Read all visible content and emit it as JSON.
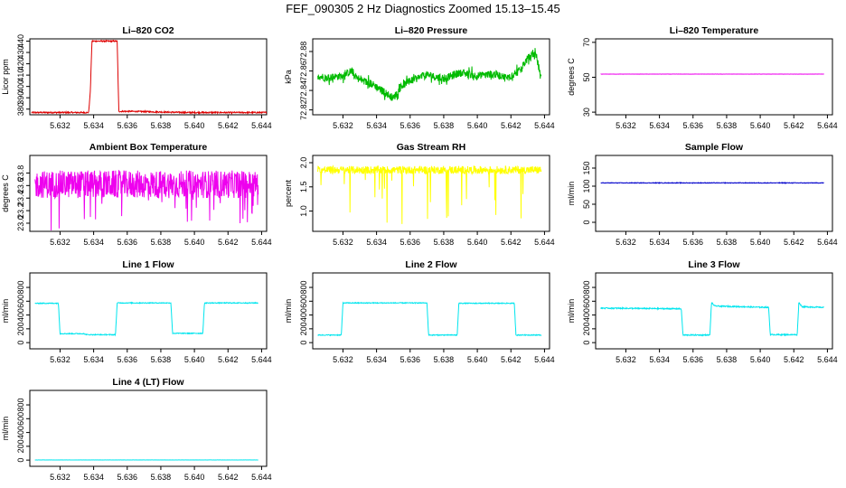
{
  "figure": {
    "title": "FEF_090305  2 Hz Diagnostics Zoomed 15.13–15.45"
  },
  "chart_data": [
    {
      "id": "co2",
      "type": "line",
      "title": "Li–820 CO2",
      "xlabel": "",
      "ylabel": "Licor ppm",
      "color": "#dd0000",
      "xlim": [
        5.6302,
        5.6443
      ],
      "ylim": [
        375,
        442
      ],
      "xticks": [
        "5.632",
        "5.634",
        "5.636",
        "5.638",
        "5.640",
        "5.642",
        "5.644"
      ],
      "yticks": [
        "380",
        "390",
        "400",
        "410",
        "420",
        "430",
        "440"
      ],
      "noise": 0.6,
      "x": [
        5.6303,
        5.6337,
        5.6338,
        5.6339,
        5.6354,
        5.6355,
        5.6362,
        5.6395,
        5.6443
      ],
      "y": [
        377,
        377,
        395,
        440,
        440,
        378,
        378,
        377,
        377
      ]
    },
    {
      "id": "pressure",
      "type": "line",
      "title": "Li–820 Pressure",
      "xlabel": "",
      "ylabel": "kPa",
      "color": "#00bb00",
      "xlim": [
        5.6302,
        5.6443
      ],
      "ylim": [
        72.815,
        72.893
      ],
      "xticks": [
        "5.632",
        "5.634",
        "5.636",
        "5.638",
        "5.640",
        "5.642",
        "5.644"
      ],
      "yticks": [
        "72.82",
        "72.84",
        "72.86",
        "72.88"
      ],
      "noise": 0.004,
      "x": [
        5.6305,
        5.631,
        5.632,
        5.6325,
        5.633,
        5.6338,
        5.6345,
        5.635,
        5.6355,
        5.6362,
        5.637,
        5.638,
        5.639,
        5.64,
        5.641,
        5.6418,
        5.6425,
        5.643,
        5.6435,
        5.6438
      ],
      "y": [
        72.855,
        72.853,
        72.855,
        72.86,
        72.851,
        72.846,
        72.838,
        72.832,
        72.845,
        72.851,
        72.856,
        72.852,
        72.858,
        72.855,
        72.857,
        72.853,
        72.86,
        72.873,
        72.877,
        72.851
      ]
    },
    {
      "id": "temperature",
      "type": "line",
      "title": "Li–820 Temperature",
      "xlabel": "",
      "ylabel": "degrees C",
      "color": "#ee00ee",
      "xlim": [
        5.6302,
        5.6443
      ],
      "ylim": [
        28.5,
        72
      ],
      "xticks": [
        "5.632",
        "5.634",
        "5.636",
        "5.638",
        "5.640",
        "5.642",
        "5.644"
      ],
      "yticks": [
        "30",
        "50",
        "70"
      ],
      "noise": 0.05,
      "x": [
        5.6305,
        5.6438
      ],
      "y": [
        51.8,
        51.8
      ]
    },
    {
      "id": "box-temp",
      "type": "line",
      "title": "Ambient Box Temperature",
      "xlabel": "",
      "ylabel": "degrees C",
      "color": "#ee00ee",
      "xlim": [
        5.6302,
        5.6443
      ],
      "ylim": [
        22.87,
        24.08
      ],
      "xticks": [
        "5.632",
        "5.634",
        "5.636",
        "5.638",
        "5.640",
        "5.642",
        "5.644"
      ],
      "yticks": [
        "23.0",
        "23.2",
        "23.4",
        "23.6",
        "23.8"
      ],
      "noise": 0.22,
      "x": [
        5.6305,
        5.6438
      ],
      "y": [
        23.62,
        23.62
      ]
    },
    {
      "id": "rh",
      "type": "line",
      "title": "Gas Stream RH",
      "xlabel": "",
      "ylabel": "percent",
      "color": "#ffff00",
      "xlim": [
        5.6302,
        5.6443
      ],
      "ylim": [
        0.58,
        2.15
      ],
      "xticks": [
        "5.632",
        "5.634",
        "5.636",
        "5.638",
        "5.640",
        "5.642",
        "5.644"
      ],
      "yticks": [
        "1.0",
        "1.5",
        "2.0"
      ],
      "noise": 0.08,
      "x": [
        5.6305,
        5.6438
      ],
      "y": [
        1.85,
        1.85
      ]
    },
    {
      "id": "sample-flow",
      "type": "line",
      "title": "Sample Flow",
      "xlabel": "",
      "ylabel": "ml/min",
      "color": "#0000cc",
      "xlim": [
        5.6302,
        5.6443
      ],
      "ylim": [
        -25,
        185
      ],
      "xticks": [
        "5.632",
        "5.634",
        "5.636",
        "5.638",
        "5.640",
        "5.642",
        "5.644"
      ],
      "yticks": [
        "0",
        "50",
        "100",
        "150"
      ],
      "noise": 0.8,
      "x": [
        5.6305,
        5.6438
      ],
      "y": [
        109,
        109
      ]
    },
    {
      "id": "line1",
      "type": "line",
      "title": "Line 1 Flow",
      "xlabel": "",
      "ylabel": "ml/min",
      "color": "#00e5ee",
      "xlim": [
        5.6302,
        5.6443
      ],
      "ylim": [
        -90,
        1010
      ],
      "xticks": [
        "5.632",
        "5.634",
        "5.636",
        "5.638",
        "5.640",
        "5.642",
        "5.644"
      ],
      "yticks": [
        "0",
        "200",
        "400",
        "600",
        "800"
      ],
      "noise": 6,
      "x": [
        5.6305,
        5.6319,
        5.632,
        5.6334,
        5.6336,
        5.6353,
        5.6354,
        5.6386,
        5.6387,
        5.6405,
        5.6406,
        5.6438
      ],
      "y": [
        570,
        570,
        130,
        130,
        115,
        115,
        575,
        575,
        135,
        135,
        575,
        575
      ]
    },
    {
      "id": "line2",
      "type": "line",
      "title": "Line 2 Flow",
      "xlabel": "",
      "ylabel": "ml/min",
      "color": "#00e5ee",
      "xlim": [
        5.6302,
        5.6443
      ],
      "ylim": [
        -90,
        1010
      ],
      "xticks": [
        "5.632",
        "5.634",
        "5.636",
        "5.638",
        "5.640",
        "5.642",
        "5.644"
      ],
      "yticks": [
        "0",
        "200",
        "400",
        "600",
        "800"
      ],
      "noise": 6,
      "x": [
        5.6305,
        5.6319,
        5.632,
        5.637,
        5.6371,
        5.6388,
        5.6389,
        5.6422,
        5.6423,
        5.6438
      ],
      "y": [
        110,
        110,
        575,
        575,
        110,
        110,
        570,
        570,
        110,
        110
      ]
    },
    {
      "id": "line3",
      "type": "line",
      "title": "Line 3 Flow",
      "xlabel": "",
      "ylabel": "ml/min",
      "color": "#00e5ee",
      "xlim": [
        5.6302,
        5.6443
      ],
      "ylim": [
        -90,
        1010
      ],
      "xticks": [
        "5.632",
        "5.634",
        "5.636",
        "5.638",
        "5.640",
        "5.642",
        "5.644"
      ],
      "yticks": [
        "0",
        "200",
        "400",
        "600",
        "800"
      ],
      "noise": 8,
      "x": [
        5.6305,
        5.6353,
        5.6354,
        5.637,
        5.6371,
        5.6373,
        5.6405,
        5.6406,
        5.6422,
        5.6423,
        5.6425,
        5.6438
      ],
      "y": [
        500,
        490,
        110,
        110,
        580,
        530,
        510,
        115,
        115,
        580,
        520,
        510
      ]
    },
    {
      "id": "line4",
      "type": "line",
      "title": "Line 4 (LT) Flow",
      "xlabel": "",
      "ylabel": "ml/min",
      "color": "#00e5ee",
      "xlim": [
        5.6302,
        5.6443
      ],
      "ylim": [
        -90,
        1010
      ],
      "xticks": [
        "5.632",
        "5.634",
        "5.636",
        "5.638",
        "5.640",
        "5.642",
        "5.644"
      ],
      "yticks": [
        "0",
        "200",
        "400",
        "600",
        "800"
      ],
      "noise": 1,
      "x": [
        5.6305,
        5.6438
      ],
      "y": [
        2,
        2
      ]
    }
  ]
}
